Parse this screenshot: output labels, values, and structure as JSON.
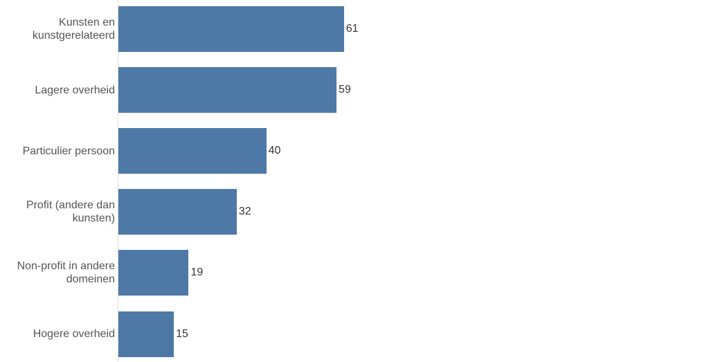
{
  "chart_data": {
    "type": "bar",
    "orientation": "horizontal",
    "categories": [
      "Kunsten en kunstgerelateerd",
      "Lagere overheid",
      "Particulier persoon",
      "Profit (andere dan kunsten)",
      "Non-profit in andere domeinen",
      "Hogere overheid"
    ],
    "values": [
      61,
      59,
      40,
      32,
      19,
      15
    ],
    "color": "#4e79a7"
  }
}
